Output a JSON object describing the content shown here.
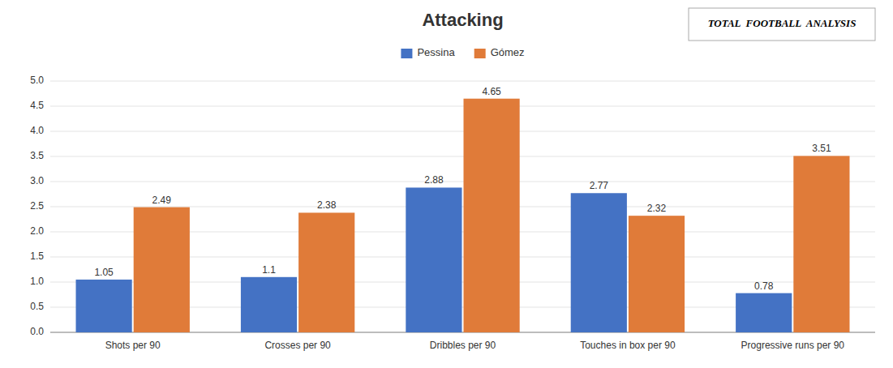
{
  "chart_data": {
    "type": "bar",
    "title": "Attacking",
    "categories": [
      "Shots per 90",
      "Crosses per 90",
      "Dribbles per 90",
      "Touches in box per 90",
      "Progressive runs per 90"
    ],
    "series": [
      {
        "name": "Pessina",
        "color": "#4472C4",
        "values": [
          1.05,
          1.1,
          2.88,
          2.77,
          0.78
        ]
      },
      {
        "name": "Gómez",
        "color": "#E07B39",
        "values": [
          2.49,
          2.38,
          4.65,
          2.32,
          3.51
        ]
      }
    ],
    "ylim": [
      0,
      5
    ],
    "yticks": [
      {
        "value": 0,
        "label": "0.0"
      },
      0.5,
      {
        "value": 1,
        "label": "1.0"
      },
      1.5,
      {
        "value": 2,
        "label": "2.0"
      },
      2.5,
      {
        "value": 3,
        "label": "3.0"
      },
      3.5,
      {
        "value": 4,
        "label": "4.0"
      },
      4.5,
      {
        "value": 5,
        "label": "5.0"
      }
    ],
    "grid": true,
    "legend": "top",
    "data_labels": true,
    "annotations": [
      "TOTAL  FOOTBALL  ANALYSIS"
    ]
  }
}
